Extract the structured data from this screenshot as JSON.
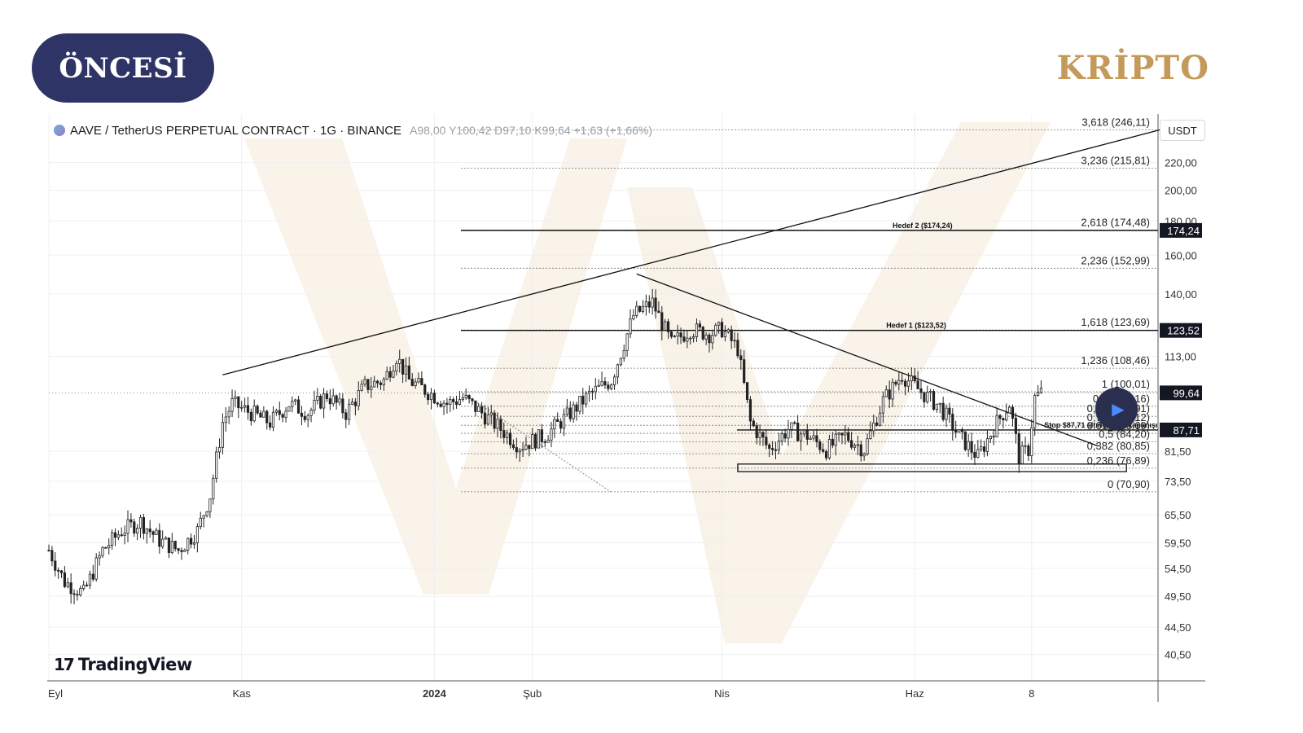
{
  "badge": {
    "label": "ÖNCESİ"
  },
  "brand": {
    "label": "KRİPTO"
  },
  "legend": {
    "symbol": "AAVE / TetherUS PERPETUAL CONTRACT · 1G · BINANCE",
    "open_label": "A",
    "open": "98,00",
    "high_label": "Y",
    "high": "100,42",
    "low_label": "D",
    "low": "97,10",
    "close_label": "K",
    "close": "99,64",
    "change": "+1,63 (+1,66%)"
  },
  "currency": "USDT",
  "logo": {
    "mark": "17",
    "word": "TradingView"
  },
  "colors": {
    "badge": "#2f3466",
    "brand": "#c49a5a",
    "candle": "#222222",
    "watermark": "#f1e4cf",
    "tag_bg": "#131722",
    "tag_text": "#ffffff"
  },
  "icons": {
    "play": "play-icon",
    "coin": "aave-coin-icon"
  },
  "chart_data": {
    "type": "candlestick",
    "x_ticks": [
      {
        "label": "Eyl",
        "date": "2023-09-01"
      },
      {
        "label": "Kas",
        "date": "2023-11-01"
      },
      {
        "label": "2024",
        "date": "2024-01-01",
        "bold": true
      },
      {
        "label": "Şub",
        "date": "2024-02-01"
      },
      {
        "label": "Nis",
        "date": "2024-04-01"
      },
      {
        "label": "Haz",
        "date": "2024-06-01"
      },
      {
        "label": "8",
        "date": "2024-07-08"
      }
    ],
    "y_axis": {
      "scale": "log",
      "ylim": [
        37,
        260
      ],
      "ticks": [
        {
          "label": "220,00",
          "value": 220
        },
        {
          "label": "200,00",
          "value": 200
        },
        {
          "label": "180,00",
          "value": 180
        },
        {
          "label": "160,00",
          "value": 160
        },
        {
          "label": "140,00",
          "value": 140
        },
        {
          "label": "113,00",
          "value": 113
        },
        {
          "label": "81,50",
          "value": 81.5
        },
        {
          "label": "73,50",
          "value": 73.5
        },
        {
          "label": "65,50",
          "value": 65.5
        },
        {
          "label": "59,50",
          "value": 59.5
        },
        {
          "label": "54,50",
          "value": 54.5
        },
        {
          "label": "49,50",
          "value": 49.5
        },
        {
          "label": "44,50",
          "value": 44.5
        },
        {
          "label": "40,50",
          "value": 40.5
        }
      ]
    },
    "price_tags": [
      {
        "label": "174,24",
        "value": 174.24
      },
      {
        "label": "123,52",
        "value": 123.52
      },
      {
        "label": "99,64",
        "value": 99.64
      },
      {
        "label": "87,71",
        "value": 87.71
      }
    ],
    "fibonacci": [
      {
        "label": "3,618 (246,11)",
        "value": 246.11
      },
      {
        "label": "3,236 (215,81)",
        "value": 215.81
      },
      {
        "label": "2,618 (174,48)",
        "value": 174.48
      },
      {
        "label": "2,236 (152,99)",
        "value": 152.99
      },
      {
        "label": "1,618 (123,69)",
        "value": 123.69
      },
      {
        "label": "1,236 (108,46)",
        "value": 108.46
      },
      {
        "label": "1 (100,01)",
        "value": 100.01
      },
      {
        "label": "0,88 (95,16)",
        "value": 95.16
      },
      {
        "label": "0,786 (91,91)",
        "value": 91.91
      },
      {
        "label": "0,705 (89,12)",
        "value": 89.12
      },
      {
        "label": "0,618 (86,69)",
        "value": 86.69
      },
      {
        "label": "0,5 (84,20)",
        "value": 84.2
      },
      {
        "label": "0,382 (80,85)",
        "value": 80.85
      },
      {
        "label": "0,236 (76,89)",
        "value": 76.89
      },
      {
        "label": "0 (70,90)",
        "value": 70.9
      }
    ],
    "annotations": [
      {
        "text": "Hedef 2 ($174,24)",
        "value": 174.24,
        "date": "2024-05-25"
      },
      {
        "text": "Hedef 1 ($123,52)",
        "value": 123.52,
        "date": "2024-05-23"
      },
      {
        "text": "Stop $87,71 altında gün kapanışı",
        "value": 87.71,
        "date": "2024-07-12"
      }
    ],
    "trendlines": [
      {
        "from": {
          "date": "2023-10-26",
          "value": 106
        },
        "to": {
          "date": "2024-08-18",
          "value": 246.5
        }
      },
      {
        "from": {
          "date": "2024-03-05",
          "value": 150
        },
        "to": {
          "date": "2024-07-29",
          "value": 83
        }
      }
    ],
    "support_zone": {
      "date_from": "2024-04-06",
      "date_to": "2024-08-07",
      "low": 76.0,
      "high": 78.0
    },
    "candles": {
      "interval": "1D",
      "start": "2023-09-01",
      "end": "2024-07-11",
      "waypoints": [
        [
          "2023-09-01",
          58
        ],
        [
          "2023-09-06",
          52
        ],
        [
          "2023-09-12",
          50
        ],
        [
          "2023-09-18",
          58
        ],
        [
          "2023-09-24",
          62
        ],
        [
          "2023-09-30",
          64
        ],
        [
          "2023-10-06",
          60
        ],
        [
          "2023-10-12",
          58
        ],
        [
          "2023-10-18",
          62
        ],
        [
          "2023-10-22",
          70
        ],
        [
          "2023-10-26",
          90
        ],
        [
          "2023-10-29",
          96
        ],
        [
          "2023-11-04",
          93
        ],
        [
          "2023-11-10",
          90
        ],
        [
          "2023-11-16",
          96
        ],
        [
          "2023-11-22",
          93
        ],
        [
          "2023-11-28",
          99
        ],
        [
          "2023-12-04",
          93
        ],
        [
          "2023-12-10",
          102
        ],
        [
          "2023-12-16",
          104
        ],
        [
          "2023-12-20",
          113
        ],
        [
          "2023-12-24",
          104
        ],
        [
          "2023-12-30",
          100
        ],
        [
          "2024-01-05",
          96
        ],
        [
          "2024-01-10",
          98
        ],
        [
          "2024-01-16",
          93
        ],
        [
          "2024-01-22",
          88
        ],
        [
          "2024-01-28",
          83
        ],
        [
          "2024-02-05",
          86
        ],
        [
          "2024-02-12",
          92
        ],
        [
          "2024-02-19",
          99
        ],
        [
          "2024-02-26",
          104
        ],
        [
          "2024-03-04",
          130
        ],
        [
          "2024-03-10",
          136
        ],
        [
          "2024-03-16",
          118
        ],
        [
          "2024-03-22",
          124
        ],
        [
          "2024-03-28",
          122
        ],
        [
          "2024-04-01",
          124
        ],
        [
          "2024-04-06",
          116
        ],
        [
          "2024-04-10",
          90
        ],
        [
          "2024-04-16",
          82
        ],
        [
          "2024-04-22",
          88
        ],
        [
          "2024-04-28",
          86
        ],
        [
          "2024-05-04",
          82
        ],
        [
          "2024-05-10",
          86
        ],
        [
          "2024-05-16",
          82
        ],
        [
          "2024-05-22",
          97
        ],
        [
          "2024-05-28",
          106
        ],
        [
          "2024-06-03",
          100
        ],
        [
          "2024-06-09",
          95
        ],
        [
          "2024-06-15",
          86
        ],
        [
          "2024-06-21",
          80
        ],
        [
          "2024-06-27",
          90
        ],
        [
          "2024-07-01",
          96
        ],
        [
          "2024-07-04",
          80
        ],
        [
          "2024-07-07",
          82
        ],
        [
          "2024-07-09",
          98
        ],
        [
          "2024-07-11",
          99.64
        ]
      ]
    }
  }
}
